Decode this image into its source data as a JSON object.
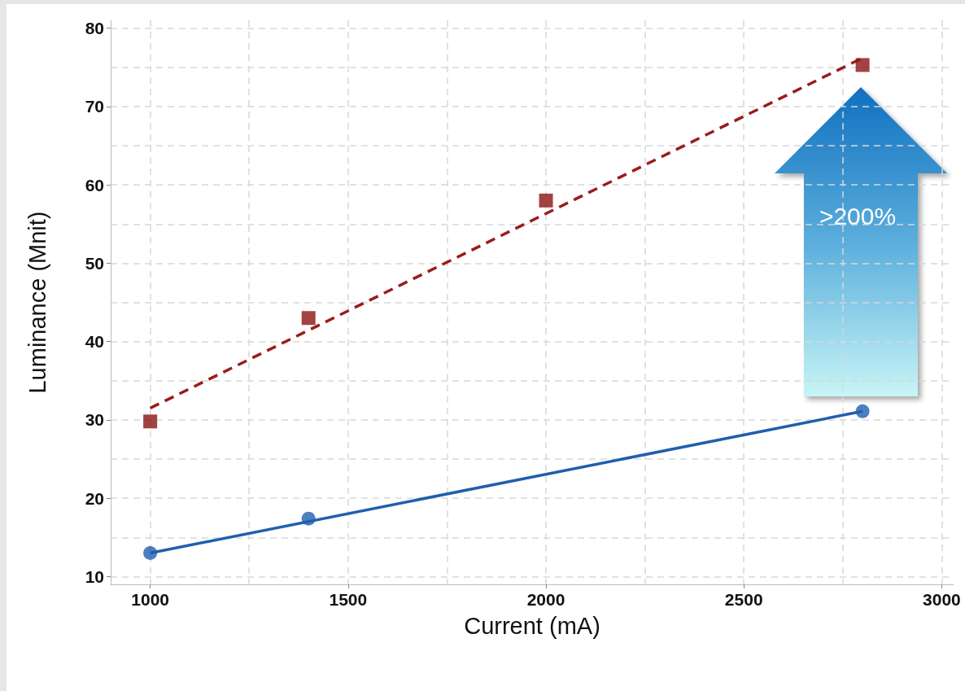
{
  "chart_data": {
    "type": "scatter",
    "xlabel": "Current (mA)",
    "ylabel": "Luminance (Mnit)",
    "xlim": [
      900,
      3030
    ],
    "xticks": [
      1000,
      1500,
      2000,
      2500,
      3000
    ],
    "ylim": [
      9,
      81
    ],
    "yticks": [
      10,
      20,
      30,
      40,
      50,
      60,
      70,
      80
    ],
    "grid": true,
    "series": [
      {
        "type": "line",
        "color": "#9b1c1c",
        "x": [
          1000,
          2800
        ],
        "values": [
          31.5,
          76.2
        ],
        "line_style": "dashed",
        "marker": "none"
      },
      {
        "color": "#8b1313",
        "x": [
          1000,
          1400,
          2000,
          2800
        ],
        "values": [
          29.8,
          43.0,
          58.0,
          75.3
        ],
        "marker": "square"
      },
      {
        "type": "line",
        "color": "#1f5fae",
        "x": [
          1000,
          2800
        ],
        "values": [
          13.0,
          31.1
        ],
        "line_style": "solid",
        "marker": "none"
      },
      {
        "color": "#1f5fae",
        "x": [
          1000,
          1400,
          2800
        ],
        "values": [
          13.0,
          17.4,
          31.1
        ],
        "marker": "circle"
      }
    ],
    "annotations": [
      ">200%"
    ]
  }
}
